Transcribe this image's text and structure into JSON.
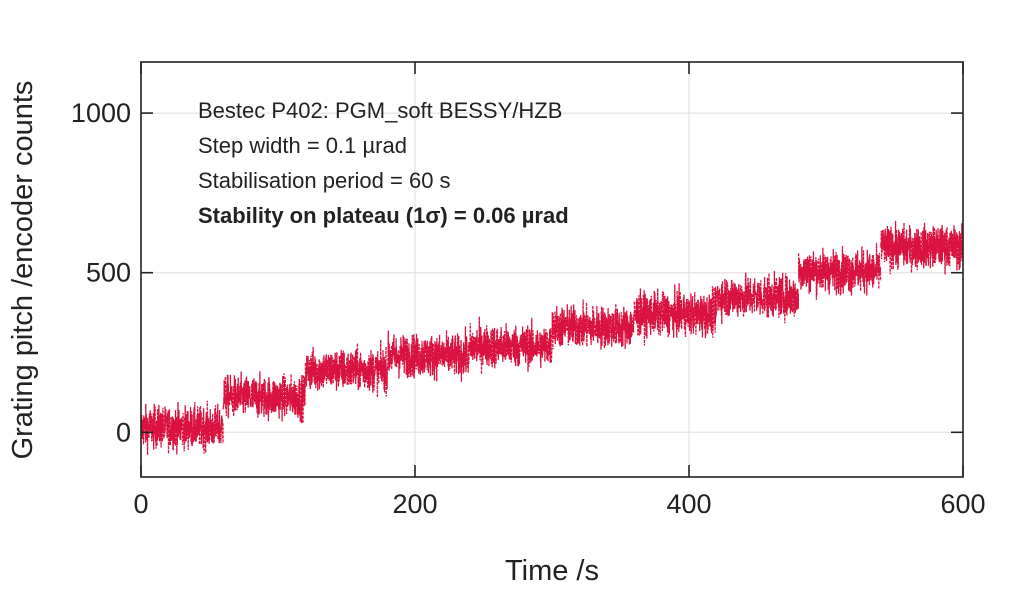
{
  "chart_data": {
    "type": "line",
    "title": "",
    "xlabel": "Time /s",
    "ylabel": "Grating pitch /encoder counts",
    "xlim": [
      0,
      600
    ],
    "ylim": [
      -140,
      1160
    ],
    "xticks": [
      0,
      200,
      400,
      600
    ],
    "yticks": [
      0,
      500,
      1000
    ],
    "xtick_labels": [
      "0",
      "200",
      "400",
      "600"
    ],
    "ytick_labels": [
      "0",
      "500",
      "1000"
    ],
    "grid": true,
    "legend": "none",
    "annotations": [
      {
        "text": "Bestec P402: PGM_soft BESSY/HZB",
        "bold": false
      },
      {
        "text": "Step width = 0.1 µrad",
        "bold": false
      },
      {
        "text": "Stabilisation period = 60 s",
        "bold": false
      },
      {
        "text": "Stability on plateau (1σ) = 0.06 µrad",
        "bold": true
      }
    ],
    "series": [
      {
        "color": "#d9123f",
        "style": "dashed-noisy",
        "plateaus": [
          {
            "t_start": 0,
            "t_end": 60,
            "mean": 15,
            "spread": 55
          },
          {
            "t_start": 60,
            "t_end": 120,
            "mean": 110,
            "spread": 55
          },
          {
            "t_start": 120,
            "t_end": 180,
            "mean": 195,
            "spread": 55
          },
          {
            "t_start": 180,
            "t_end": 240,
            "mean": 240,
            "spread": 55
          },
          {
            "t_start": 240,
            "t_end": 300,
            "mean": 270,
            "spread": 55
          },
          {
            "t_start": 300,
            "t_end": 360,
            "mean": 330,
            "spread": 55
          },
          {
            "t_start": 360,
            "t_end": 420,
            "mean": 370,
            "spread": 55
          },
          {
            "t_start": 420,
            "t_end": 480,
            "mean": 425,
            "spread": 55
          },
          {
            "t_start": 480,
            "t_end": 540,
            "mean": 505,
            "spread": 55
          },
          {
            "t_start": 540,
            "t_end": 600,
            "mean": 580,
            "spread": 55
          }
        ]
      }
    ]
  }
}
